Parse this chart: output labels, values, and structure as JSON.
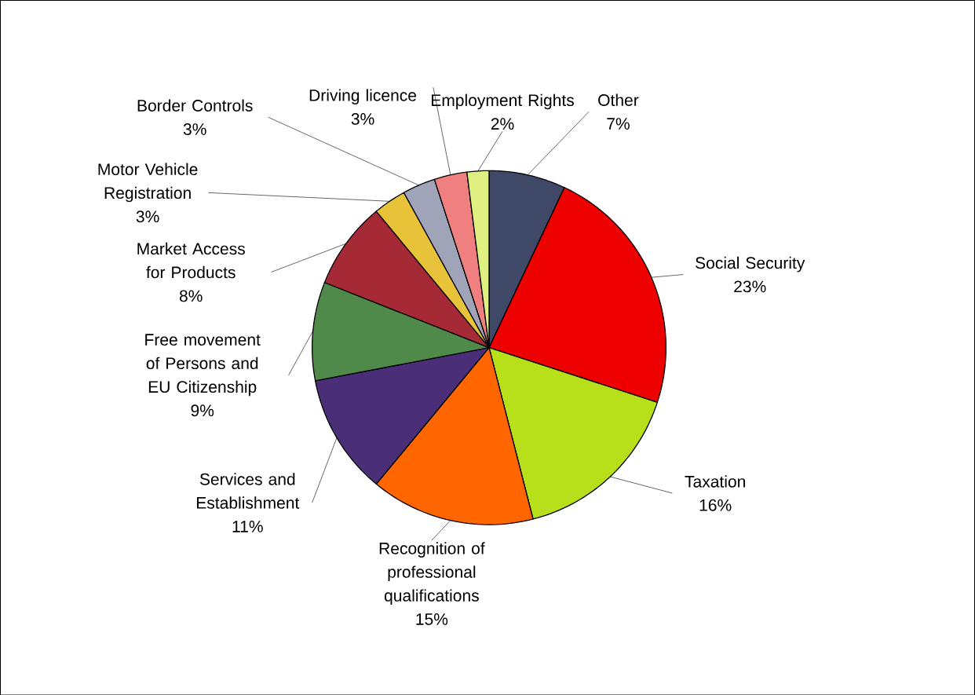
{
  "chart_data": {
    "type": "pie",
    "categories": [
      "Other",
      "Social Security",
      "Taxation",
      "Recognition of professional qualifications",
      "Services and Establishment",
      "Free movement of Persons and EU Citizenship",
      "Market Access for Products",
      "Motor Vehicle Registration",
      "Border Controls",
      "Driving licence",
      "Employment Rights"
    ],
    "values": [
      7,
      23,
      16,
      15,
      11,
      9,
      8,
      3,
      3,
      3,
      2
    ],
    "value_labels": [
      "7%",
      "23%",
      "16%",
      "15%",
      "11%",
      "9%",
      "8%",
      "3%",
      "3%",
      "3%",
      "2%"
    ],
    "colors": [
      "#404868",
      "#ee0000",
      "#b8e01a",
      "#ff6600",
      "#4b2e78",
      "#4f8a4a",
      "#a52a35",
      "#e8c33a",
      "#a0a4b8",
      "#f08080",
      "#e0f080"
    ]
  }
}
